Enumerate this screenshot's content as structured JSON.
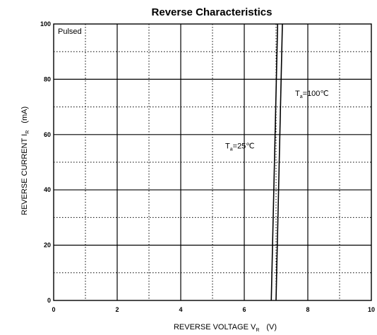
{
  "chart_data": {
    "type": "line",
    "title": "Reverse   Characteristics",
    "xlabel": {
      "main": "REVERSE VOLTAGE   V",
      "sub": "R",
      "unit": "(V)"
    },
    "ylabel": {
      "main": "REVERSE CURRENT   I",
      "sub": "R",
      "unit": "(mA)"
    },
    "xlim": [
      0,
      10
    ],
    "ylim": [
      0,
      100
    ],
    "x_ticks": [
      0,
      2,
      4,
      6,
      8,
      10
    ],
    "x_tick_labels": [
      "0",
      "2",
      "4",
      "6",
      "8",
      "10"
    ],
    "y_ticks": [
      0,
      20,
      40,
      60,
      80,
      100
    ],
    "y_tick_labels": [
      "0",
      "20",
      "40",
      "60",
      "80",
      "100"
    ],
    "grid": {
      "major": "solid",
      "minor": "dotted",
      "minor_x_step": 1,
      "minor_y_step": 10
    },
    "legend": "none",
    "condition_label": "Pulsed",
    "series": [
      {
        "name": "Ta=25℃",
        "label": {
          "prefix": "T",
          "sub": "a",
          "suffix": "=25℃"
        },
        "x": [
          6.85,
          7.05
        ],
        "y": [
          0,
          100
        ]
      },
      {
        "name": "Ta=100℃",
        "label": {
          "prefix": "T",
          "sub": "a",
          "suffix": "=100℃"
        },
        "x": [
          7.0,
          7.2
        ],
        "y": [
          0,
          100
        ]
      }
    ]
  }
}
